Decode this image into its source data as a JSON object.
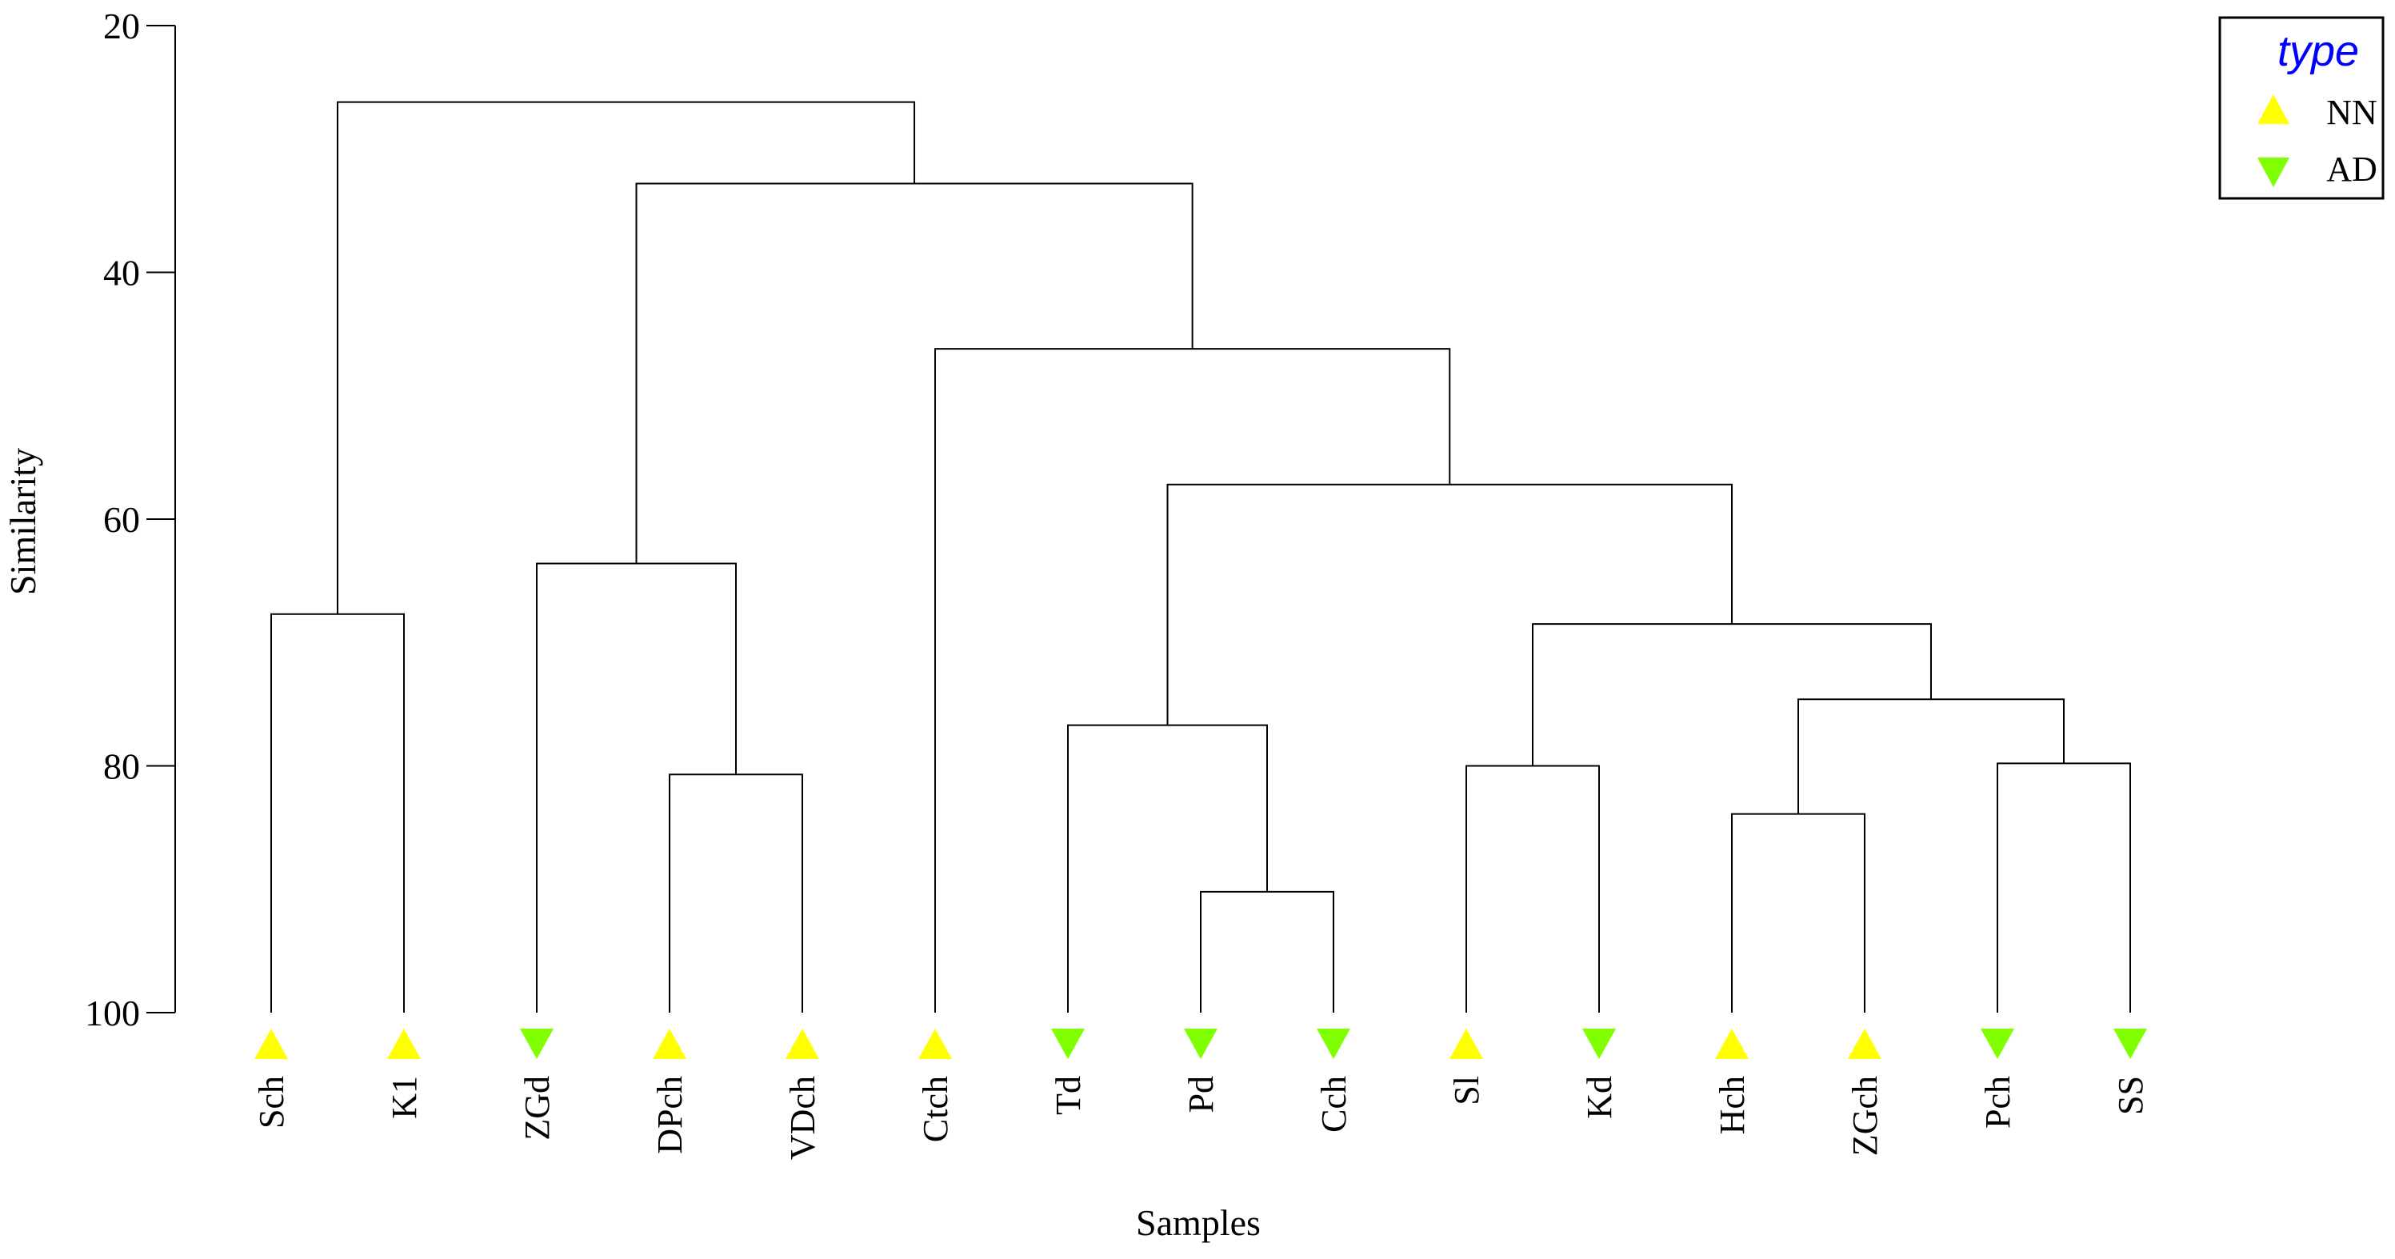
{
  "chart_data": {
    "type": "dendrogram",
    "ylabel": "Similarity",
    "xlabel": "Samples",
    "ylim": [
      20,
      100
    ],
    "yticks": [
      20,
      40,
      60,
      80,
      100
    ],
    "grid": false,
    "legend_position": "top-right",
    "legend": {
      "title": "type",
      "entries": [
        {
          "name": "NN",
          "marker": "triangle-up",
          "color": "#ffff00"
        },
        {
          "name": "AD",
          "marker": "triangle-down",
          "color": "#80ff00"
        }
      ]
    },
    "leaves": [
      {
        "label": "Sch",
        "type": "NN"
      },
      {
        "label": "K1",
        "type": "NN"
      },
      {
        "label": "ZGd",
        "type": "AD"
      },
      {
        "label": "DPch",
        "type": "NN"
      },
      {
        "label": "VDch",
        "type": "NN"
      },
      {
        "label": "Ctch",
        "type": "NN"
      },
      {
        "label": "Td",
        "type": "AD"
      },
      {
        "label": "Pd",
        "type": "AD"
      },
      {
        "label": "Cch",
        "type": "AD"
      },
      {
        "label": "Sl",
        "type": "NN"
      },
      {
        "label": "Kd",
        "type": "AD"
      },
      {
        "label": "Hch",
        "type": "NN"
      },
      {
        "label": "ZGch",
        "type": "NN"
      },
      {
        "label": "Pch",
        "type": "AD"
      },
      {
        "label": "SS",
        "type": "AD"
      }
    ],
    "merges": [
      {
        "id": "m1",
        "left": "Pd",
        "right": "Cch",
        "similarity": 90.2
      },
      {
        "id": "m2",
        "left": "DPch",
        "right": "VDch",
        "similarity": 80.7
      },
      {
        "id": "m3",
        "left": "Sl",
        "right": "Kd",
        "similarity": 80.0
      },
      {
        "id": "m4",
        "left": "Pch",
        "right": "SS",
        "similarity": 79.8
      },
      {
        "id": "m5",
        "left": "Hch",
        "right": "ZGch",
        "similarity": 83.9
      },
      {
        "id": "m6",
        "left": "Td",
        "right": "m1",
        "similarity": 76.7
      },
      {
        "id": "m7",
        "left": "m5",
        "right": "m4",
        "similarity": 74.6
      },
      {
        "id": "m8",
        "left": "m3",
        "right": "m7",
        "similarity": 68.5
      },
      {
        "id": "m9",
        "left": "Sch",
        "right": "K1",
        "similarity": 67.7
      },
      {
        "id": "m10",
        "left": "ZGd",
        "right": "m2",
        "similarity": 63.6
      },
      {
        "id": "m11",
        "left": "m6",
        "right": "m8",
        "similarity": 57.2
      },
      {
        "id": "m12",
        "left": "Ctch",
        "right": "m11",
        "similarity": 46.2
      },
      {
        "id": "m13",
        "left": "m10",
        "right": "m12",
        "similarity": 32.8
      },
      {
        "id": "m14",
        "left": "m9",
        "right": "m13",
        "similarity": 26.2
      }
    ]
  }
}
